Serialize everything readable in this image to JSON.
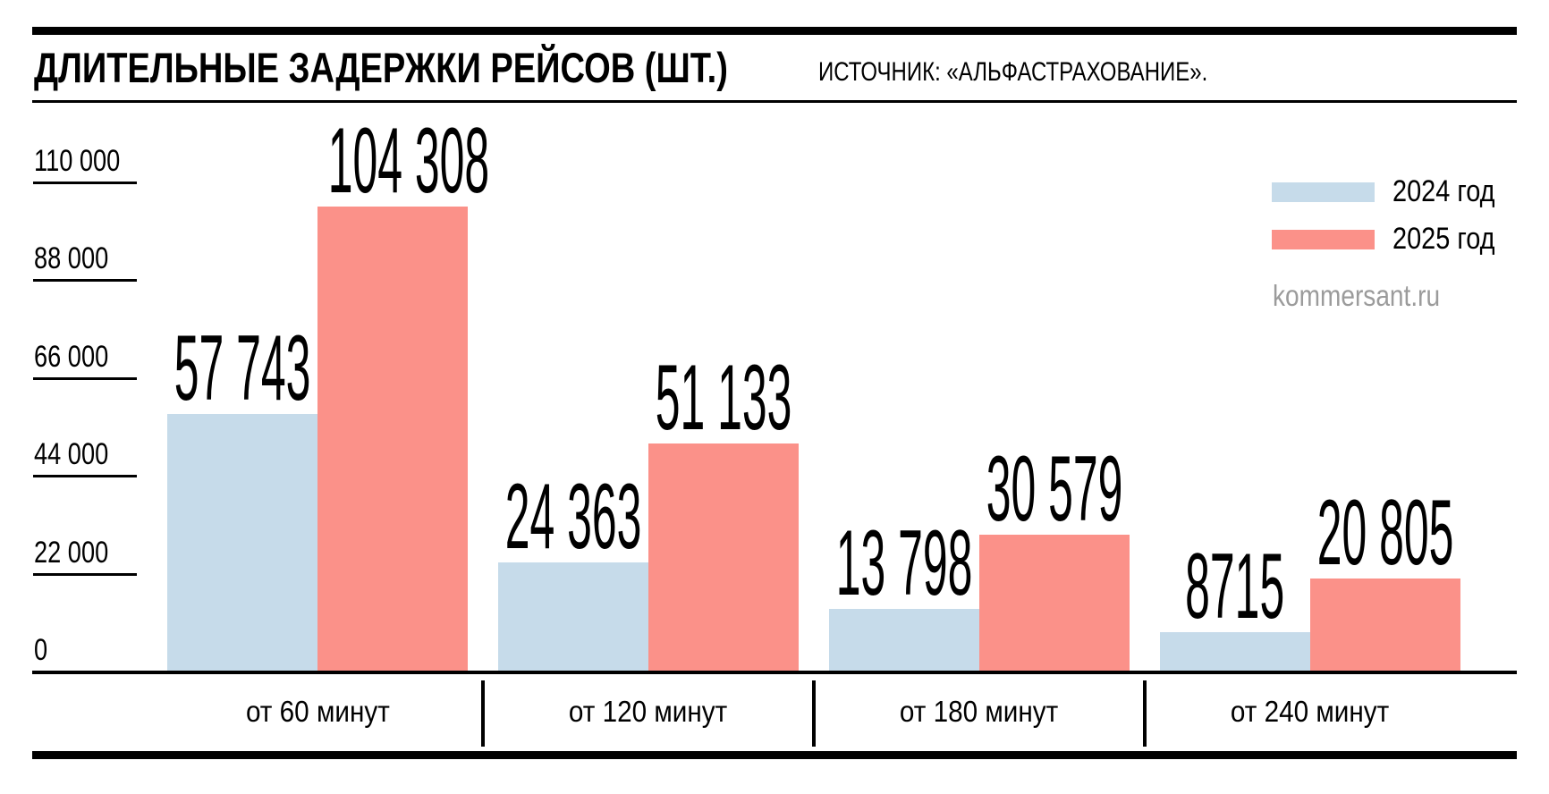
{
  "header": {
    "title": "ДЛИТЕЛЬНЫЕ ЗАДЕРЖКИ РЕЙСОВ (ШТ.)",
    "source": "ИСТОЧНИК: «АЛЬФАСТРАХОВАНИЕ»."
  },
  "watermark": "kommersant.ru",
  "legend": [
    {
      "label": "2024 год",
      "color": "#c6dbea"
    },
    {
      "label": "2025 год",
      "color": "#fb9189"
    }
  ],
  "chart_data": {
    "type": "bar",
    "title": "ДЛИТЕЛЬНЫЕ ЗАДЕРЖКИ РЕЙСОВ (ШТ.)",
    "source": "ИСТОЧНИК: «АЛЬФАСТРАХОВАНИЕ».",
    "categories": [
      "от 60 минут",
      "от 120 минут",
      "от 180 минут",
      "от 240 минут"
    ],
    "series": [
      {
        "name": "2024 год",
        "color": "#c6dbea",
        "values": [
          57743,
          24363,
          13798,
          8715
        ],
        "value_labels": [
          "57 743",
          "24 363",
          "13 798",
          "8715"
        ]
      },
      {
        "name": "2025 год",
        "color": "#fb9189",
        "values": [
          104308,
          51133,
          30579,
          20805
        ],
        "value_labels": [
          "104 308",
          "51 133",
          "30 579",
          "20 805"
        ]
      }
    ],
    "y_ticks": [
      110000,
      88000,
      66000,
      44000,
      22000,
      0
    ],
    "y_tick_labels": [
      "110 000",
      "88 000",
      "66 000",
      "44 000",
      "22 000",
      "0"
    ],
    "ylim": [
      0,
      110000
    ],
    "grid": false,
    "legend_position": "top-right",
    "bar_value_labels_shown": true
  }
}
